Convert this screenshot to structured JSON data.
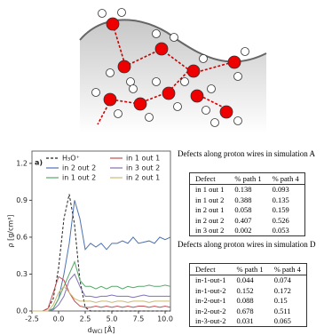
{
  "chart_data": {
    "type": "line",
    "panel_label": "a)",
    "ylabel": "ρ [g/cm³]",
    "xlabel": {
      "symbol": "d",
      "subscript": "WCI",
      "unit": "[Å]"
    },
    "x": [
      -2.5,
      -2,
      -1.5,
      -1,
      -0.5,
      0,
      0.5,
      1,
      1.5,
      2,
      2.5,
      3,
      3.5,
      4,
      4.5,
      5,
      5.5,
      6,
      6.5,
      7,
      7.5,
      8,
      8.5,
      9,
      9.5,
      10,
      10.5
    ],
    "series": [
      {
        "name": "H₃O⁺",
        "color": "#222222",
        "dash": true,
        "values": [
          0,
          0,
          0,
          0.02,
          0.1,
          0.35,
          0.75,
          0.95,
          0.7,
          0.25,
          0.03,
          0,
          0,
          0,
          0,
          0,
          0,
          0,
          0,
          0,
          0,
          0,
          0,
          0,
          0,
          0,
          0
        ]
      },
      {
        "name": "in 2 out 2",
        "color": "#4c72b0",
        "values": [
          0,
          0,
          0,
          0,
          0.02,
          0.1,
          0.3,
          0.55,
          0.9,
          0.75,
          0.5,
          0.55,
          0.52,
          0.55,
          0.5,
          0.55,
          0.55,
          0.57,
          0.55,
          0.6,
          0.55,
          0.56,
          0.57,
          0.55,
          0.6,
          0.58,
          0.6
        ]
      },
      {
        "name": "in 1 out 2",
        "color": "#55a868",
        "values": [
          0,
          0,
          0,
          0,
          0.02,
          0.1,
          0.2,
          0.3,
          0.4,
          0.25,
          0.2,
          0.2,
          0.18,
          0.2,
          0.18,
          0.2,
          0.2,
          0.18,
          0.2,
          0.19,
          0.2,
          0.2,
          0.21,
          0.2,
          0.2,
          0.21,
          0.2
        ]
      },
      {
        "name": "in 1 out 1",
        "color": "#c44e52",
        "values": [
          0,
          0,
          0,
          0.02,
          0.15,
          0.28,
          0.25,
          0.15,
          0.08,
          0.04,
          0.03,
          0.03,
          0.04,
          0.03,
          0.04,
          0.03,
          0.04,
          0.03,
          0.04,
          0.03,
          0.04,
          0.04,
          0.03,
          0.04,
          0.03,
          0.04,
          0.03
        ]
      },
      {
        "name": "in 3 out 2",
        "color": "#8172b2",
        "values": [
          0,
          0,
          0,
          0,
          0.01,
          0.05,
          0.12,
          0.25,
          0.3,
          0.2,
          0.12,
          0.12,
          0.11,
          0.12,
          0.12,
          0.13,
          0.12,
          0.12,
          0.12,
          0.11,
          0.12,
          0.13,
          0.12,
          0.12,
          0.12,
          0.12,
          0.12
        ]
      },
      {
        "name": "in 2 out 1",
        "color": "#ccb974",
        "values": [
          0,
          0,
          0,
          0,
          0.05,
          0.15,
          0.2,
          0.15,
          0.1,
          0.08,
          0.08,
          0.08,
          0.07,
          0.08,
          0.08,
          0.07,
          0.08,
          0.08,
          0.07,
          0.08,
          0.08,
          0.08,
          0.07,
          0.08,
          0.08,
          0.08,
          0.08
        ]
      }
    ],
    "xlim": [
      -2.5,
      10.5
    ],
    "xticks": [
      -2.5,
      {
        "value": 0,
        "label": "0.0"
      },
      2.5,
      {
        "value": 5,
        "label": "5.0"
      },
      7.5,
      {
        "value": 10,
        "label": "10.0"
      }
    ],
    "ylim": [
      0,
      1.3
    ],
    "yticks": [
      {
        "value": 0,
        "label": "0.0"
      },
      0.3,
      0.6,
      0.9,
      1.2
    ]
  },
  "tables": [
    {
      "caption": "Defects along proton wires in simulation A",
      "header": [
        "Defect",
        "% path 1",
        "% path 4"
      ],
      "rows": [
        [
          "in 1 out 1",
          0.138,
          0.093
        ],
        [
          "in 1 out 2",
          0.388,
          0.135
        ],
        [
          "in 2 out 1",
          0.058,
          0.159
        ],
        [
          "in 2 out 2",
          0.407,
          0.526
        ],
        [
          "in 3 out 2",
          0.002,
          0.053
        ]
      ]
    },
    {
      "caption": "Defects along proton wires in simulation D",
      "header": [
        "Defect",
        "% path 1",
        "% path 4"
      ],
      "rows": [
        [
          "in-1-out-1",
          0.044,
          0.074
        ],
        [
          "in-1-out-2",
          0.152,
          0.172
        ],
        [
          "in-2-out-1",
          0.088,
          0.15
        ],
        [
          "in-2-out-2",
          0.678,
          0.511
        ],
        [
          "in-3-out-2",
          0.031,
          0.065
        ]
      ]
    }
  ]
}
